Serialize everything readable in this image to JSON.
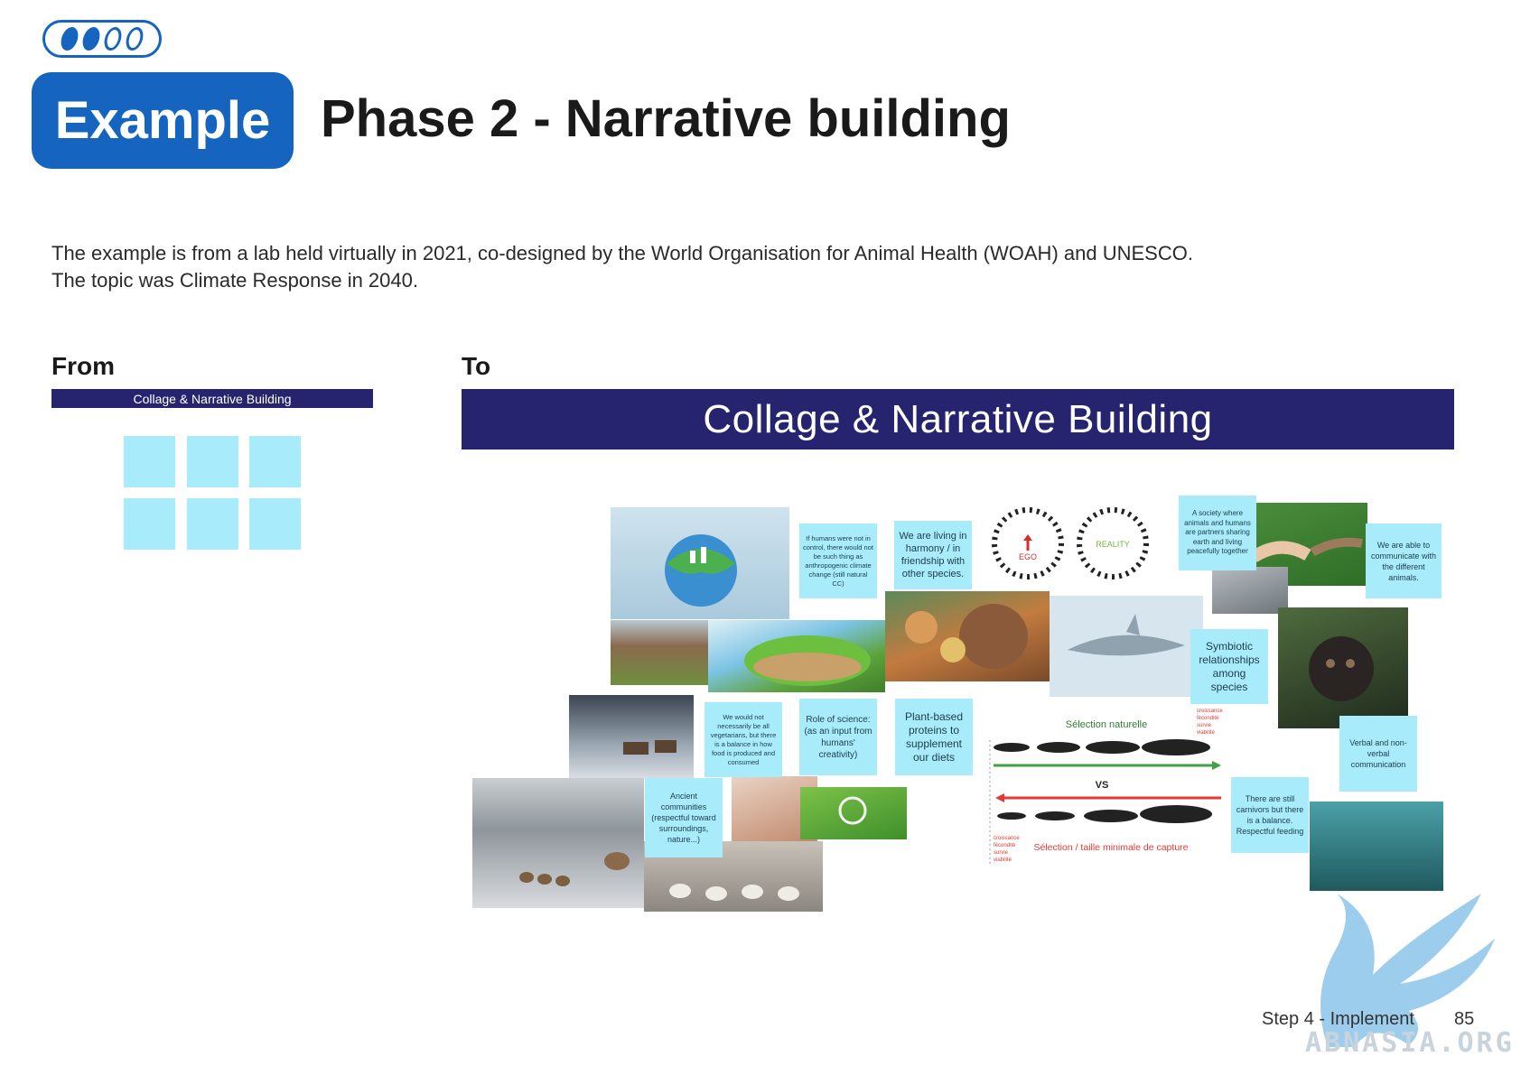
{
  "progress": {
    "total": 4,
    "filled": 2
  },
  "badge": {
    "label": "Example"
  },
  "header": {
    "title": "Phase 2 - Narrative building"
  },
  "intro": {
    "line1": "The example is from a lab held virtually in 2021, co-designed by the World Organisation for Animal Health (WOAH) and UNESCO.",
    "line2": "The topic was Climate Response in 2040."
  },
  "from": {
    "label": "From",
    "bar_title": "Collage & Narrative Building",
    "sticky_count": 6
  },
  "to": {
    "label": "To",
    "bar_title": "Collage & Narrative Building",
    "notes": [
      "If humans were not in control, there would not be such thing as anthropogenic climate change (still natural CC)",
      "We are living in harmony / in friendship with other species.",
      "A society where animals and humans are partners sharing earth and living peacefully together",
      "We are able to communicate with the different animals.",
      "Symbiotic relationships among species",
      "We would not necessarily be all vegetarians, but there is a balance in how food is produced and consumed",
      "Role of science: (as an input from humans' creativity)",
      "Plant-based proteins to supplement our diets",
      "Verbal and non-verbal communication",
      "Ancient communities (respectful toward surroundings, nature...)",
      "There are still carnivors but there is a balance. Respectful feeding"
    ],
    "diagram": {
      "ego_label": "EGO",
      "reality_label": "REALITY",
      "selection_naturelle": "Sélection naturelle",
      "vs": "VS",
      "selection_taille": "Sélection / taille minimale de capture",
      "top_list": [
        "croissance",
        "fécondité",
        "survie",
        "viabilité"
      ],
      "bottom_list": [
        "croissance",
        "fécondité",
        "survie",
        "viabilité"
      ]
    }
  },
  "footer": {
    "step": "Step 4 - Implement",
    "page": "85"
  },
  "watermark": {
    "text": "ABNASIA.ORG"
  },
  "colors": {
    "accent": "#1565c0",
    "navy_bar": "#26246e",
    "sticky": "#a8ecfb"
  }
}
